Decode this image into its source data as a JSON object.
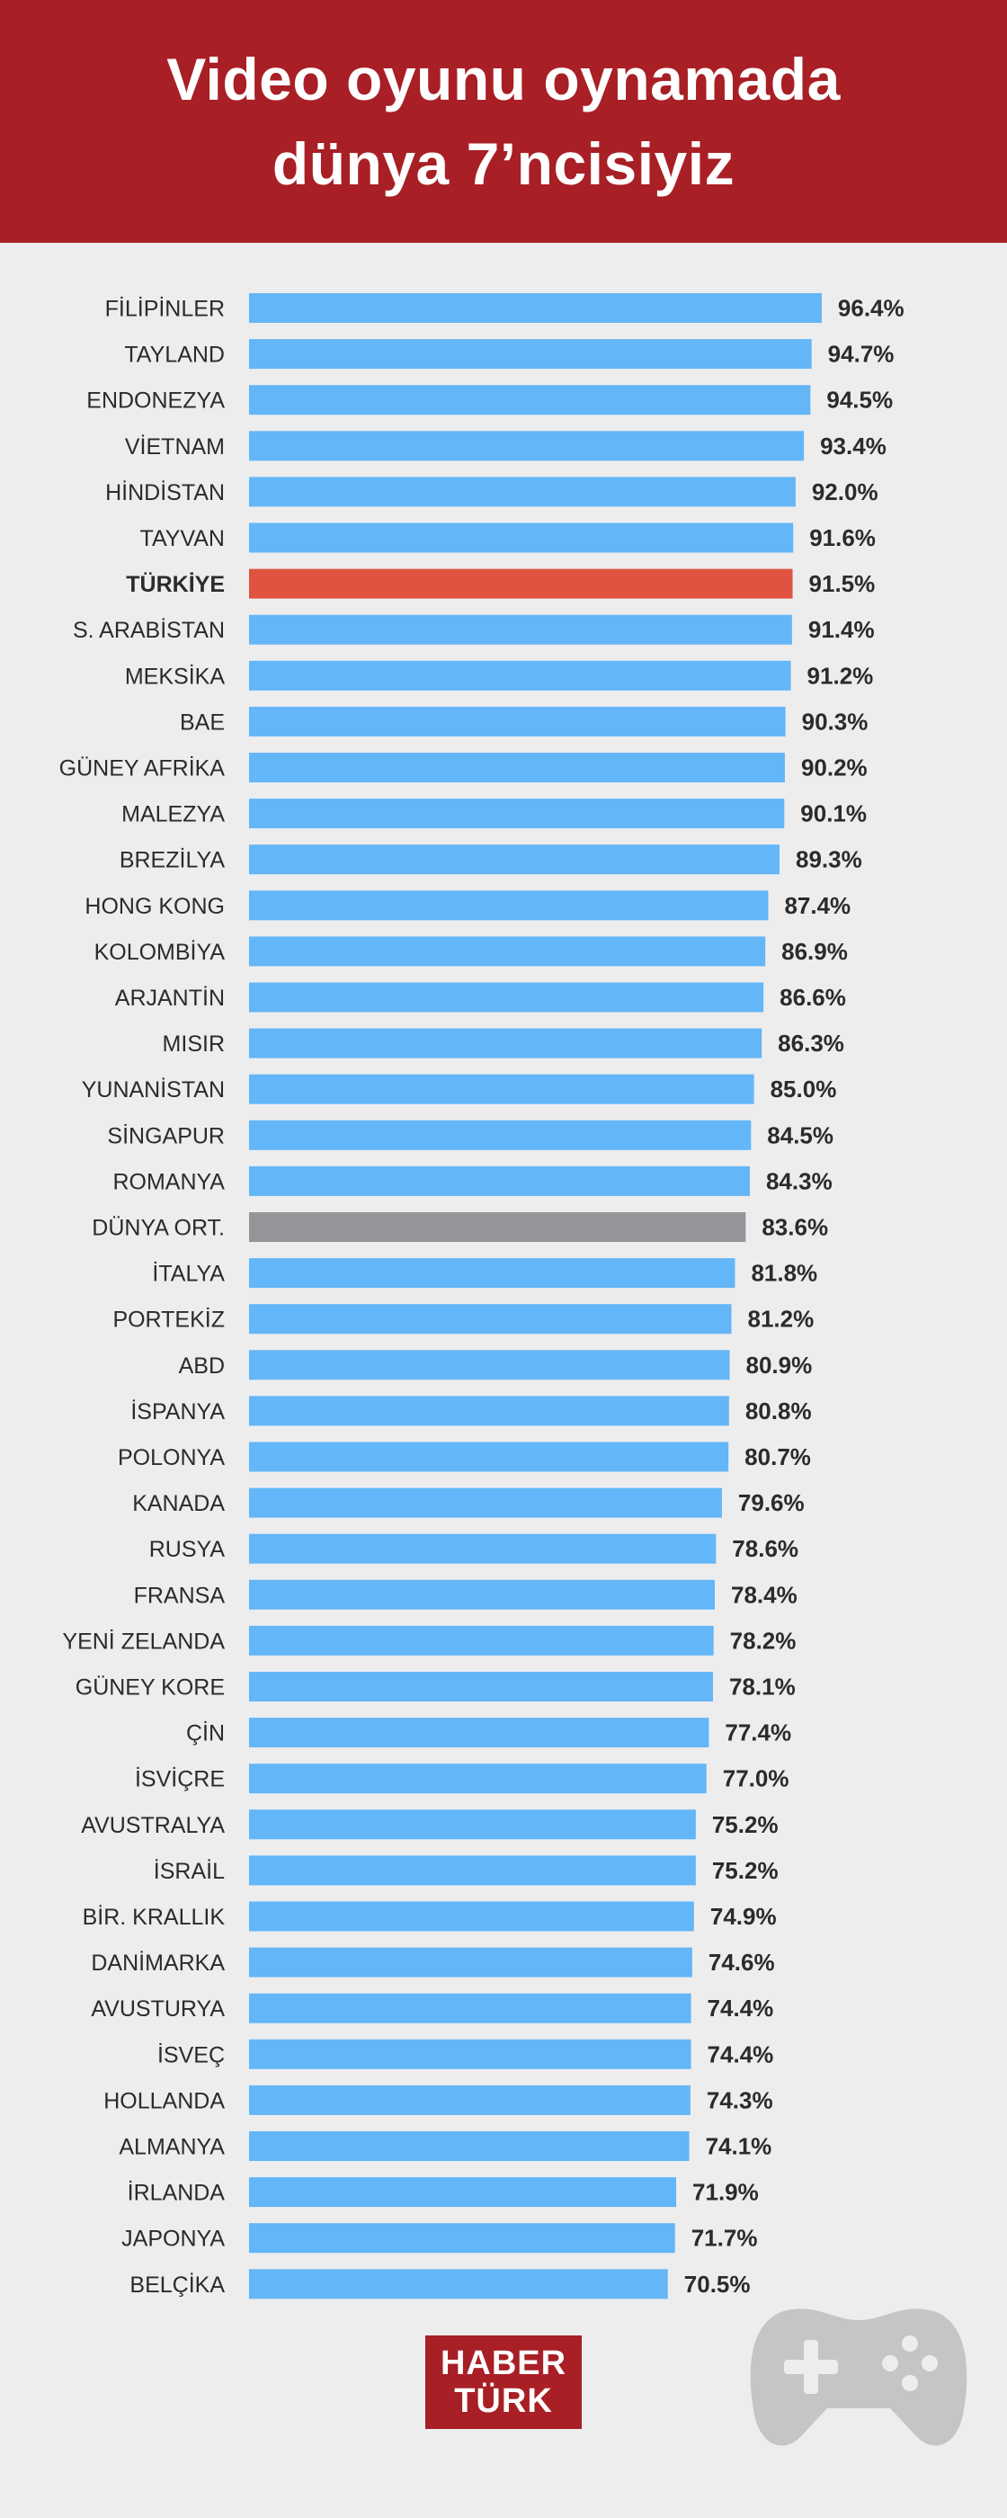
{
  "title": {
    "line1": "Video oyunu oynamada",
    "line2": "dünya 7’ncisiyiz"
  },
  "logo": {
    "line1": "HABER",
    "line2": "TÜRK"
  },
  "colors": {
    "header": "#a81f25",
    "bar_default": "#63b6f7",
    "bar_highlight": "#e05340",
    "bar_average": "#939598",
    "background": "#ededee",
    "text": "#2b2b2b"
  },
  "chart_data": {
    "type": "bar",
    "orientation": "horizontal",
    "xlim": [
      0,
      100
    ],
    "grid": false,
    "highlight": {
      "TÜRKİYE": "highlight",
      "DÜNYA ORT.": "average"
    },
    "categories": [
      "FİLİPİNLER",
      "TAYLAND",
      "ENDONEZYA",
      "VİETNAM",
      "HİNDİSTAN",
      "TAYVAN",
      "TÜRKİYE",
      "S. ARABİSTAN",
      "MEKSİKA",
      "BAE",
      "GÜNEY AFRİKA",
      "MALEZYA",
      "BREZİLYA",
      "HONG KONG",
      "KOLOMBİYA",
      "ARJANTİN",
      "MISIR",
      "YUNANİSTAN",
      "SİNGAPUR",
      "ROMANYA",
      "DÜNYA ORT.",
      "İTALYA",
      "PORTEKİZ",
      "ABD",
      "İSPANYA",
      "POLONYA",
      "KANADA",
      "RUSYA",
      "FRANSA",
      "YENİ ZELANDA",
      "GÜNEY KORE",
      "ÇİN",
      "İSVİÇRE",
      "AVUSTRALYA",
      "İSRAİL",
      "BİR. KRALLIK",
      "DANİMARKA",
      "AVUSTURYA",
      "İSVEÇ",
      "HOLLANDA",
      "ALMANYA",
      "İRLANDA",
      "JAPONYA",
      "BELÇİKA"
    ],
    "values": [
      96.4,
      94.7,
      94.5,
      93.4,
      92.0,
      91.6,
      91.5,
      91.4,
      91.2,
      90.3,
      90.2,
      90.1,
      89.3,
      87.4,
      86.9,
      86.6,
      86.3,
      85.0,
      84.5,
      84.3,
      83.6,
      81.8,
      81.2,
      80.9,
      80.8,
      80.7,
      79.6,
      78.6,
      78.4,
      78.2,
      78.1,
      77.4,
      77.0,
      75.2,
      75.2,
      74.9,
      74.6,
      74.4,
      74.4,
      74.3,
      74.1,
      71.9,
      71.7,
      70.5
    ],
    "labels": [
      "96.4%",
      "94.7%",
      "94.5%",
      "93.4%",
      "92.0%",
      "91.6%",
      "91.5%",
      "91.4%",
      "91.2%",
      "90.3%",
      "90.2%",
      "90.1%",
      "89.3%",
      "87.4%",
      "86.9%",
      "86.6%",
      "86.3%",
      "85.0%",
      "84.5%",
      "84.3%",
      "83.6%",
      "81.8%",
      "81.2%",
      "80.9%",
      "80.8%",
      "80.7%",
      "79.6%",
      "78.6%",
      "78.4%",
      "78.2%",
      "78.1%",
      "77.4%",
      "77.0%",
      "75.2%",
      "75.2%",
      "74.9%",
      "74.6%",
      "74.4%",
      "74.4%",
      "74.3%",
      "74.1%",
      "71.9%",
      "71.7%",
      "70.5%"
    ]
  }
}
